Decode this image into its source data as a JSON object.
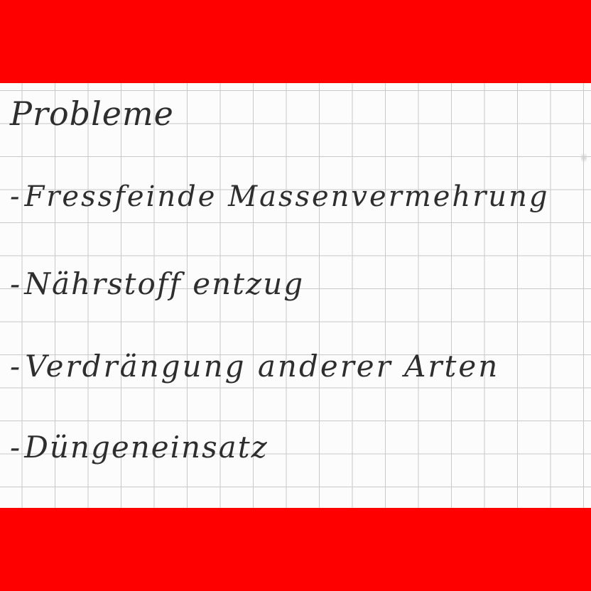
{
  "colors": {
    "band": "#ff0000",
    "paper": "#fcfcfc",
    "grid": "#c9c9c9",
    "ink": "#2e2e2e"
  },
  "note": {
    "title": "Probleme",
    "items": [
      {
        "dash": "-",
        "text": "Fressfeinde Massenvermehrung"
      },
      {
        "dash": "-",
        "text": "Nährstoff entzug"
      },
      {
        "dash": "-",
        "text": "Verdrängung anderer Arten"
      },
      {
        "dash": "-",
        "text": "Düngeneinsatz"
      }
    ]
  }
}
